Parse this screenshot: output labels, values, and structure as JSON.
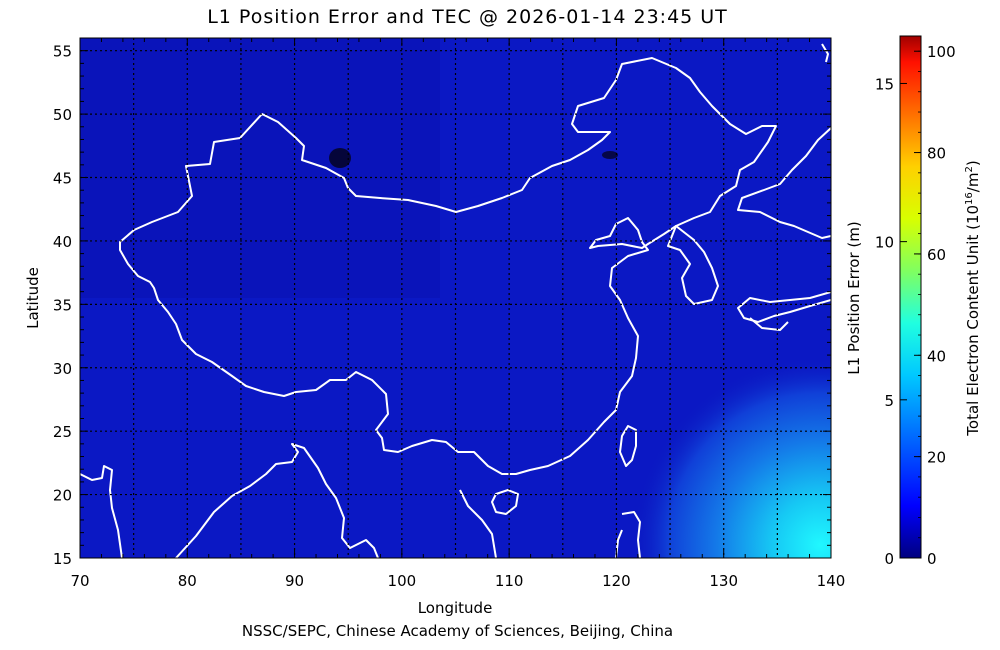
{
  "title": "L1 Position Error and TEC @ 2026-01-14 23:45 UT",
  "footer": "NSSC/SEPC, Chinese Academy of Sciences, Beijing, China",
  "colors": {
    "ocean_low": "#1010d8",
    "land_base": "#0a17c0",
    "tec_max_region": "#20f0ff",
    "coastline": "#ffffff",
    "grid": "#000000",
    "dark_spot": "#05053a"
  },
  "chart_data": {
    "type": "heatmap",
    "title": "L1 Position Error and TEC @ 2026-01-14 23:45 UT",
    "xlabel": "Longitude",
    "ylabel": "Latitude",
    "xlim": [
      70,
      140
    ],
    "ylim": [
      15,
      56
    ],
    "x_ticks": [
      70,
      80,
      90,
      100,
      110,
      120,
      130,
      140
    ],
    "y_ticks": [
      15,
      20,
      25,
      30,
      35,
      40,
      45,
      50,
      55
    ],
    "grid": true,
    "grid_spacing_deg": 5,
    "field": {
      "description_min_tec": 12,
      "max_tec_near": {
        "lon": 139,
        "lat": 16,
        "tec": 45
      },
      "dark_spot": {
        "lon": 94,
        "lat": 45.8
      }
    },
    "colorbar": {
      "left_label": "L1 Position Error (m)",
      "left_ticks": [
        0,
        5,
        10,
        15
      ],
      "left_range": [
        0,
        16.5
      ],
      "right_label": "Total Electron Content Unit (10",
      "right_label_sup": "16",
      "right_label_tail": "/m",
      "right_label_sup2": "2",
      "right_label_end": ")",
      "right_ticks": [
        0,
        20,
        40,
        60,
        80,
        100
      ],
      "right_range": [
        0,
        103
      ],
      "colormap": [
        "#00007f",
        "#0000ff",
        "#0080ff",
        "#00ffff",
        "#80ff80",
        "#ffff00",
        "#ff8000",
        "#ff0000",
        "#800000"
      ]
    }
  }
}
